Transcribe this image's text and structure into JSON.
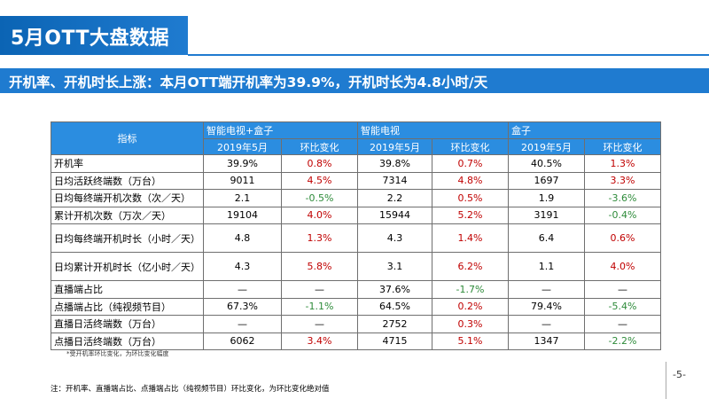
{
  "title": "5月OTT大盘数据",
  "subtitle": "开机率、开机时长上涨：本月OTT端开机率为39.9%，开机时长为4.8小时/天",
  "colors": {
    "accent": "#1f7bd0",
    "header": "#2b8de0",
    "up": "#c00000",
    "down": "#2e8b3a"
  },
  "table": {
    "metric_header": "指标",
    "groups": [
      "智能电视+盒子",
      "智能电视",
      "盒子"
    ],
    "subheaders": [
      "2019年5月",
      "环比变化"
    ],
    "rows": [
      {
        "label": "开机率",
        "cells": [
          {
            "v": "39.9%",
            "c": ""
          },
          {
            "v": "0.8%",
            "c": "red"
          },
          {
            "v": "39.8%",
            "c": ""
          },
          {
            "v": "0.7%",
            "c": "red"
          },
          {
            "v": "40.5%",
            "c": ""
          },
          {
            "v": "1.3%",
            "c": "red"
          }
        ]
      },
      {
        "label": "日均活跃终端数（万台）",
        "cells": [
          {
            "v": "9011",
            "c": ""
          },
          {
            "v": "4.5%",
            "c": "red"
          },
          {
            "v": "7314",
            "c": ""
          },
          {
            "v": "4.8%",
            "c": "red"
          },
          {
            "v": "1697",
            "c": ""
          },
          {
            "v": "3.3%",
            "c": "red"
          }
        ]
      },
      {
        "label": "日均每终端开机次数（次／天）",
        "cells": [
          {
            "v": "2.1",
            "c": ""
          },
          {
            "v": "-0.5%",
            "c": "green"
          },
          {
            "v": "2.2",
            "c": ""
          },
          {
            "v": "0.5%",
            "c": "red"
          },
          {
            "v": "1.9",
            "c": ""
          },
          {
            "v": "-3.6%",
            "c": "green"
          }
        ]
      },
      {
        "label": "累计开机次数（万次／天）",
        "cells": [
          {
            "v": "19104",
            "c": ""
          },
          {
            "v": "4.0%",
            "c": "red"
          },
          {
            "v": "15944",
            "c": ""
          },
          {
            "v": "5.2%",
            "c": "red"
          },
          {
            "v": "3191",
            "c": ""
          },
          {
            "v": "-0.4%",
            "c": "green"
          }
        ]
      },
      {
        "label": "日均每终端开机时长（小时／天）",
        "tall": true,
        "cells": [
          {
            "v": "4.8",
            "c": ""
          },
          {
            "v": "1.3%",
            "c": "red"
          },
          {
            "v": "4.3",
            "c": ""
          },
          {
            "v": "1.4%",
            "c": "red"
          },
          {
            "v": "6.4",
            "c": ""
          },
          {
            "v": "0.6%",
            "c": "red"
          }
        ]
      },
      {
        "label": "日均累计开机时长（亿小时／天）",
        "tall": true,
        "cells": [
          {
            "v": "4.3",
            "c": ""
          },
          {
            "v": "5.8%",
            "c": "red"
          },
          {
            "v": "3.1",
            "c": ""
          },
          {
            "v": "6.2%",
            "c": "red"
          },
          {
            "v": "1.1",
            "c": ""
          },
          {
            "v": "4.0%",
            "c": "red"
          }
        ]
      },
      {
        "label": "直播端占比",
        "cells": [
          {
            "v": "—",
            "c": ""
          },
          {
            "v": "—",
            "c": ""
          },
          {
            "v": "37.6%",
            "c": ""
          },
          {
            "v": "-1.7%",
            "c": "green"
          },
          {
            "v": "—",
            "c": ""
          },
          {
            "v": "—",
            "c": ""
          }
        ]
      },
      {
        "label": "点播端占比（纯视频节目）",
        "cells": [
          {
            "v": "67.3%",
            "c": ""
          },
          {
            "v": "-1.1%",
            "c": "green"
          },
          {
            "v": "64.5%",
            "c": ""
          },
          {
            "v": "0.2%",
            "c": "red"
          },
          {
            "v": "79.4%",
            "c": ""
          },
          {
            "v": "-5.4%",
            "c": "green"
          }
        ]
      },
      {
        "label": "直播日活终端数（万台）",
        "cells": [
          {
            "v": "—",
            "c": ""
          },
          {
            "v": "—",
            "c": ""
          },
          {
            "v": "2752",
            "c": ""
          },
          {
            "v": "0.3%",
            "c": "red"
          },
          {
            "v": "—",
            "c": ""
          },
          {
            "v": "—",
            "c": ""
          }
        ]
      },
      {
        "label": "点播日活终端数（万台）",
        "cells": [
          {
            "v": "6062",
            "c": ""
          },
          {
            "v": "3.4%",
            "c": "red"
          },
          {
            "v": "4715",
            "c": ""
          },
          {
            "v": "5.1%",
            "c": "red"
          },
          {
            "v": "1347",
            "c": ""
          },
          {
            "v": "-2.2%",
            "c": "green"
          }
        ]
      }
    ]
  },
  "footnote_small": "*受开机率环比变化，为环比变化幅度",
  "note": "注：开机率、直播端占比、点播端占比（纯视频节目）环比变化，为环比变化绝对值",
  "page_number": "-5-"
}
